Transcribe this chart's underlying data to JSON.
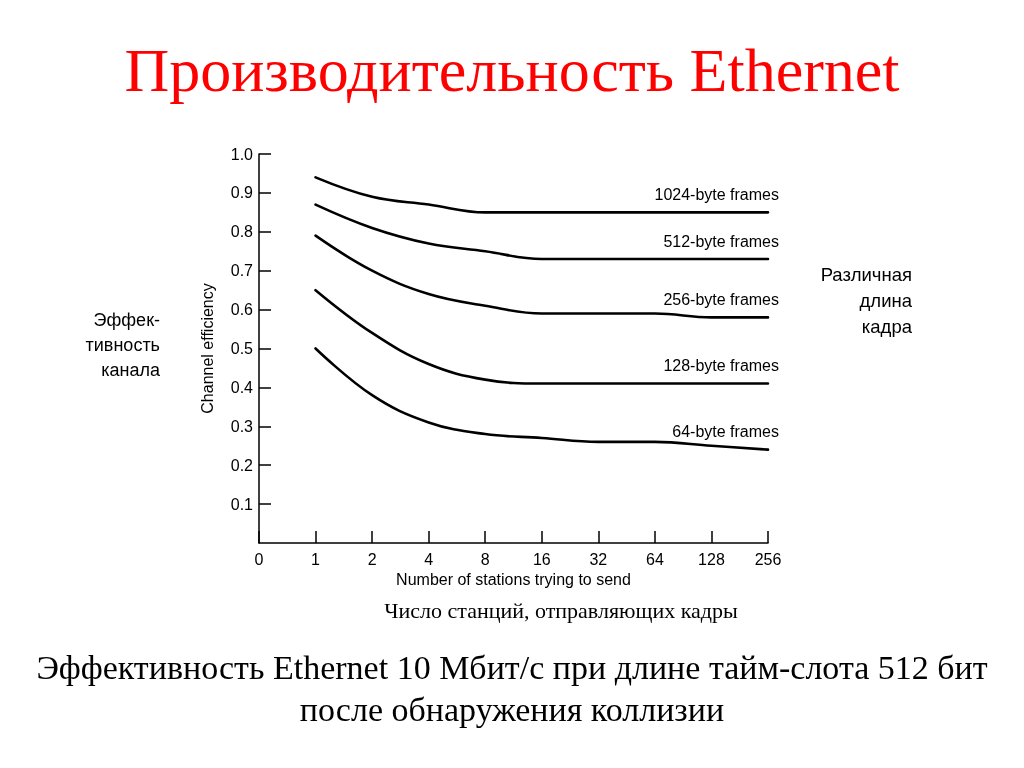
{
  "chart_data": {
    "type": "line",
    "title": "Производительность Ethernet",
    "xlabel": "Number of stations trying to send",
    "ylabel": "Channel efficiency",
    "categories": [
      "0",
      "1",
      "2",
      "4",
      "8",
      "16",
      "32",
      "64",
      "128",
      "256"
    ],
    "series": [
      {
        "name": "1024-byte frames",
        "color": "#000000",
        "values": [
          null,
          0.94,
          0.89,
          0.87,
          0.85,
          0.85,
          0.85,
          0.85,
          0.85,
          0.85
        ]
      },
      {
        "name": "512-byte frames",
        "color": "#000000",
        "values": [
          null,
          0.87,
          0.81,
          0.77,
          0.75,
          0.73,
          0.73,
          0.73,
          0.73,
          0.73
        ]
      },
      {
        "name": "256-byte frames",
        "color": "#000000",
        "values": [
          null,
          0.79,
          0.7,
          0.64,
          0.61,
          0.59,
          0.59,
          0.59,
          0.58,
          0.58
        ]
      },
      {
        "name": "128-byte frames",
        "color": "#000000",
        "values": [
          null,
          0.65,
          0.54,
          0.46,
          0.42,
          0.41,
          0.41,
          0.41,
          0.41,
          0.41
        ]
      },
      {
        "name": "64-byte frames",
        "color": "#000000",
        "values": [
          null,
          0.5,
          0.38,
          0.31,
          0.28,
          0.27,
          0.26,
          0.26,
          0.25,
          0.24
        ]
      }
    ],
    "ylim": [
      0,
      1
    ],
    "yticks": [
      0.1,
      0.2,
      0.3,
      0.4,
      0.5,
      0.6,
      0.7,
      0.8,
      0.9,
      {
        "value": 1,
        "label": "1.0"
      }
    ],
    "grid": false,
    "legend": false,
    "marker": "none",
    "line_style": "solid",
    "annotations": [
      "Эффек-\nтивность\nканала",
      "Различная\nдлина\nкадра",
      "Число станций, отправляющих кадры",
      "Эффективность Ethernet 10 Мбит/с при длине тайм-слота 512 бит\nпосле обнаружения коллизии"
    ]
  }
}
